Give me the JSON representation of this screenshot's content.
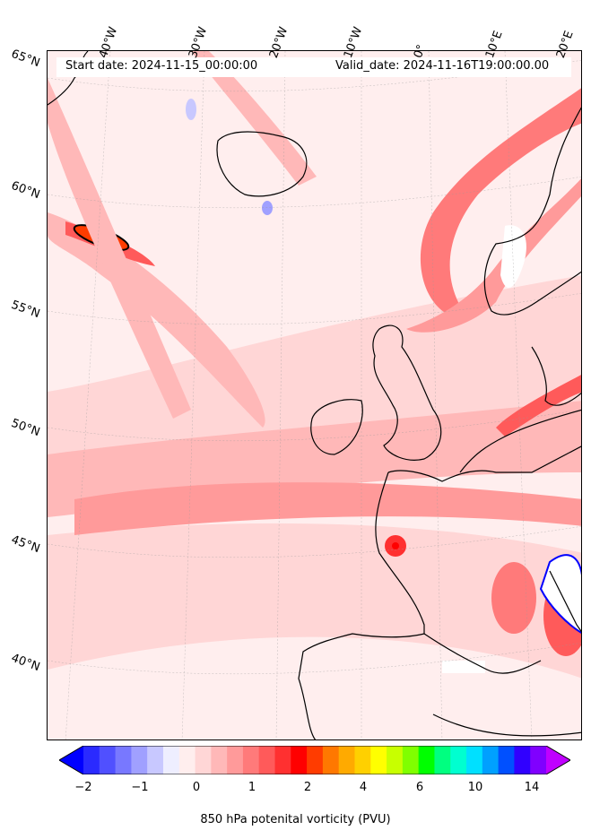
{
  "header": {
    "start_date": "Start date: 2024-11-15_00:00:00",
    "valid_date": "Valid_date: 2024-11-16T19:00:00.00"
  },
  "longitude_labels": [
    "40°W",
    "30°W",
    "20°W",
    "10°W",
    "0°",
    "10°E",
    "20°E"
  ],
  "latitude_labels": [
    "65°N",
    "60°N",
    "55°N",
    "50°N",
    "45°N",
    "40°N"
  ],
  "colorbar": {
    "title": "850 hPa potenital vorticity (PVU)",
    "tick_labels": [
      "−2",
      "−1",
      "0",
      "1",
      "2",
      "4",
      "6",
      "10",
      "14"
    ],
    "colors": [
      "#0000ff",
      "#2a2aff",
      "#5050ff",
      "#7878ff",
      "#a0a0ff",
      "#c8c8ff",
      "#eeeeff",
      "#ffeeee",
      "#ffd6d6",
      "#ffb8b8",
      "#ff9a9a",
      "#ff7a7a",
      "#ff5a5a",
      "#ff3030",
      "#ff0000",
      "#ff3c00",
      "#ff7800",
      "#ffaa00",
      "#ffd000",
      "#ffff00",
      "#c8ff00",
      "#80ff00",
      "#00ff00",
      "#00ff80",
      "#00ffd0",
      "#00e0ff",
      "#00a0ff",
      "#0050ff",
      "#3000ff",
      "#8000ff",
      "#c000ff"
    ]
  }
}
